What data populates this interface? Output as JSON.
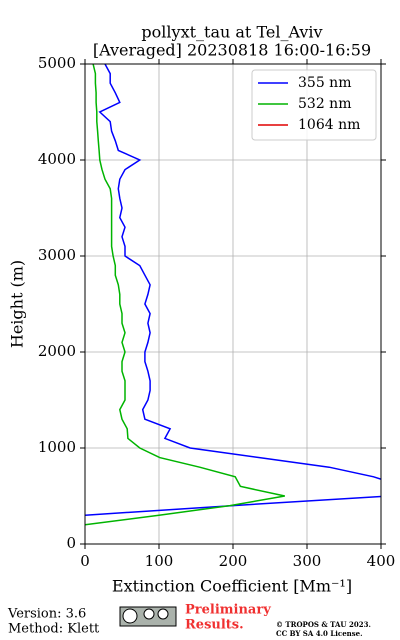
{
  "chart_data": {
    "type": "line",
    "title": "pollyxt_tau at Tel_Aviv",
    "subtitle": "[Averaged] 20230818 16:00-16:59",
    "xlabel": "Extinction Coefficient [Mm⁻¹]",
    "ylabel": "Height (m)",
    "y": [
      200,
      300,
      400,
      500,
      600,
      700,
      800,
      900,
      1000,
      1100,
      1200,
      1300,
      1400,
      1500,
      1600,
      1700,
      1800,
      1900,
      2000,
      2100,
      2200,
      2300,
      2400,
      2500,
      2600,
      2700,
      2800,
      2900,
      3000,
      3100,
      3200,
      3300,
      3400,
      3500,
      3600,
      3700,
      3800,
      3900,
      4000,
      4100,
      4200,
      4300,
      4400,
      4500,
      4600,
      4700,
      4800,
      4900,
      5000
    ],
    "series": [
      {
        "name": "355 nm",
        "color": "#0000ff",
        "values": [
          null,
          0,
          200,
          410,
          430,
          390,
          330,
          236,
          142,
          108,
          115,
          81,
          78,
          85,
          88,
          88,
          85,
          81,
          81,
          85,
          88,
          85,
          88,
          81,
          85,
          88,
          81,
          74,
          54,
          54,
          50,
          54,
          47,
          50,
          47,
          45,
          47,
          54,
          74,
          45,
          41,
          36,
          34,
          20,
          47,
          41,
          34,
          34,
          27
        ]
      },
      {
        "name": "532 nm",
        "color": "#00b400",
        "values": [
          0,
          100,
          196,
          270,
          210,
          203,
          155,
          101,
          74,
          58,
          57,
          50,
          47,
          54,
          54,
          54,
          50,
          50,
          54,
          50,
          54,
          50,
          50,
          47,
          47,
          45,
          41,
          41,
          38,
          36,
          36,
          36,
          36,
          36,
          36,
          34,
          27,
          23,
          20,
          19,
          18,
          17,
          16,
          16,
          15,
          15,
          14,
          14,
          11
        ]
      },
      {
        "name": "1064 nm",
        "color": "#e00000",
        "values": [
          null,
          null,
          null,
          null,
          null,
          null,
          null,
          null,
          null,
          null,
          null,
          null,
          null,
          null,
          null,
          null,
          null,
          null,
          null,
          null,
          null,
          null,
          null,
          null,
          null,
          null,
          null,
          null,
          null,
          null,
          null,
          null,
          null,
          null,
          null,
          null,
          null,
          null,
          null,
          null,
          null,
          null,
          null,
          null,
          null,
          null,
          null,
          null,
          null
        ]
      }
    ],
    "xlim": [
      0,
      400
    ],
    "xticks": [
      0,
      100,
      200,
      300,
      400
    ],
    "ylim": [
      0,
      5000
    ],
    "yticks": [
      0,
      1000,
      2000,
      3000,
      4000,
      5000
    ],
    "grid": true,
    "legend": "upper right"
  },
  "footer": {
    "version": "Version: 3.6",
    "method": "Method: Klett",
    "preliminary": "Preliminary",
    "results": "Results.",
    "copyright": "© TROPOS & TAU 2023.",
    "license": "CC BY SA 4.0 License."
  }
}
